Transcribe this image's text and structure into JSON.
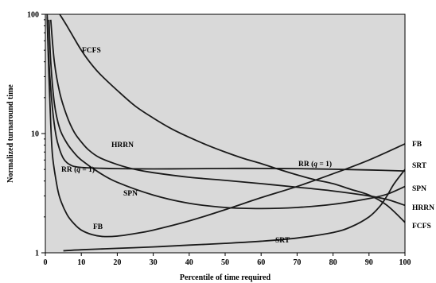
{
  "chart_data": {
    "type": "line",
    "title": "",
    "xlabel": "Percentile of time required",
    "ylabel": "Normalized turnaround time",
    "xlim": [
      0,
      100
    ],
    "ylim": [
      1,
      100
    ],
    "yscale": "log",
    "grid": false,
    "legend": "none",
    "plot_background": "#d9d9d9",
    "line_color": "#1a1a1a",
    "x_ticks": [
      "0",
      "10",
      "20",
      "30",
      "40",
      "50",
      "60",
      "70",
      "80",
      "90",
      "100"
    ],
    "y_ticks": [
      "1",
      "10",
      "100"
    ],
    "series": [
      {
        "name": "FCFS",
        "label_text": "FCFS",
        "points": [
          [
            4,
            100
          ],
          [
            6,
            80
          ],
          [
            8,
            63
          ],
          [
            10,
            50
          ],
          [
            12,
            41
          ],
          [
            15,
            32
          ],
          [
            20,
            23
          ],
          [
            25,
            17
          ],
          [
            30,
            13.5
          ],
          [
            35,
            11
          ],
          [
            40,
            9.3
          ],
          [
            45,
            8
          ],
          [
            50,
            7
          ],
          [
            55,
            6.2
          ],
          [
            60,
            5.6
          ],
          [
            65,
            5
          ],
          [
            70,
            4.5
          ],
          [
            75,
            4.1
          ],
          [
            80,
            3.8
          ],
          [
            85,
            3.4
          ],
          [
            90,
            3.05
          ],
          [
            95,
            2.5
          ],
          [
            100,
            1.8
          ]
        ]
      },
      {
        "name": "HRRN",
        "label_text": "HRRN",
        "points": [
          [
            1.5,
            90
          ],
          [
            2.5,
            40
          ],
          [
            4,
            22
          ],
          [
            6,
            14
          ],
          [
            8,
            10.3
          ],
          [
            10,
            8.5
          ],
          [
            12,
            7.3
          ],
          [
            15,
            6.3
          ],
          [
            20,
            5.5
          ],
          [
            25,
            5
          ],
          [
            30,
            4.7
          ],
          [
            40,
            4.3
          ],
          [
            50,
            4.05
          ],
          [
            60,
            3.8
          ],
          [
            70,
            3.55
          ],
          [
            80,
            3.3
          ],
          [
            90,
            3
          ],
          [
            95,
            2.8
          ],
          [
            100,
            2.5
          ]
        ]
      },
      {
        "name": "RR (q = 1)",
        "label_text": "RR (",
        "label_italic": "q",
        "label_suffix": " = 1)",
        "points": [
          [
            0.5,
            100
          ],
          [
            1,
            40
          ],
          [
            2,
            16
          ],
          [
            3,
            9.5
          ],
          [
            4,
            7.3
          ],
          [
            5,
            6.2
          ],
          [
            6,
            5.7
          ],
          [
            7,
            5.45
          ],
          [
            8,
            5.3
          ],
          [
            10,
            5.2
          ],
          [
            15,
            5.12
          ],
          [
            20,
            5.08
          ],
          [
            30,
            5.05
          ],
          [
            40,
            5.07
          ],
          [
            50,
            5.1
          ],
          [
            60,
            5.1
          ],
          [
            70,
            5.08
          ],
          [
            80,
            5.02
          ],
          [
            90,
            4.95
          ],
          [
            100,
            4.85
          ]
        ]
      },
      {
        "name": "SPN",
        "label_text": "SPN",
        "points": [
          [
            1,
            90
          ],
          [
            1.5,
            40
          ],
          [
            2.5,
            18
          ],
          [
            4,
            11
          ],
          [
            6,
            8.3
          ],
          [
            8,
            6.9
          ],
          [
            10,
            6
          ],
          [
            15,
            4.7
          ],
          [
            20,
            3.9
          ],
          [
            30,
            3.05
          ],
          [
            40,
            2.6
          ],
          [
            50,
            2.4
          ],
          [
            60,
            2.35
          ],
          [
            70,
            2.4
          ],
          [
            80,
            2.55
          ],
          [
            90,
            2.85
          ],
          [
            95,
            3.1
          ],
          [
            100,
            3.6
          ]
        ]
      },
      {
        "name": "FB",
        "label_text": "FB",
        "points": [
          [
            0.5,
            95
          ],
          [
            1,
            30
          ],
          [
            1.5,
            12
          ],
          [
            2,
            6.5
          ],
          [
            3,
            4
          ],
          [
            4,
            2.9
          ],
          [
            6,
            2.1
          ],
          [
            8,
            1.75
          ],
          [
            10,
            1.55
          ],
          [
            13,
            1.42
          ],
          [
            16,
            1.37
          ],
          [
            20,
            1.38
          ],
          [
            25,
            1.45
          ],
          [
            30,
            1.55
          ],
          [
            40,
            1.85
          ],
          [
            50,
            2.3
          ],
          [
            60,
            2.9
          ],
          [
            70,
            3.6
          ],
          [
            80,
            4.6
          ],
          [
            90,
            6
          ],
          [
            100,
            8.2
          ]
        ]
      },
      {
        "name": "SRT",
        "label_text": "SRT",
        "points": [
          [
            5,
            1.04
          ],
          [
            10,
            1.06
          ],
          [
            20,
            1.09
          ],
          [
            30,
            1.12
          ],
          [
            40,
            1.16
          ],
          [
            50,
            1.2
          ],
          [
            60,
            1.25
          ],
          [
            70,
            1.33
          ],
          [
            80,
            1.48
          ],
          [
            85,
            1.65
          ],
          [
            90,
            2
          ],
          [
            93,
            2.45
          ],
          [
            95,
            3
          ],
          [
            97,
            3.8
          ],
          [
            100,
            5
          ]
        ]
      }
    ]
  }
}
